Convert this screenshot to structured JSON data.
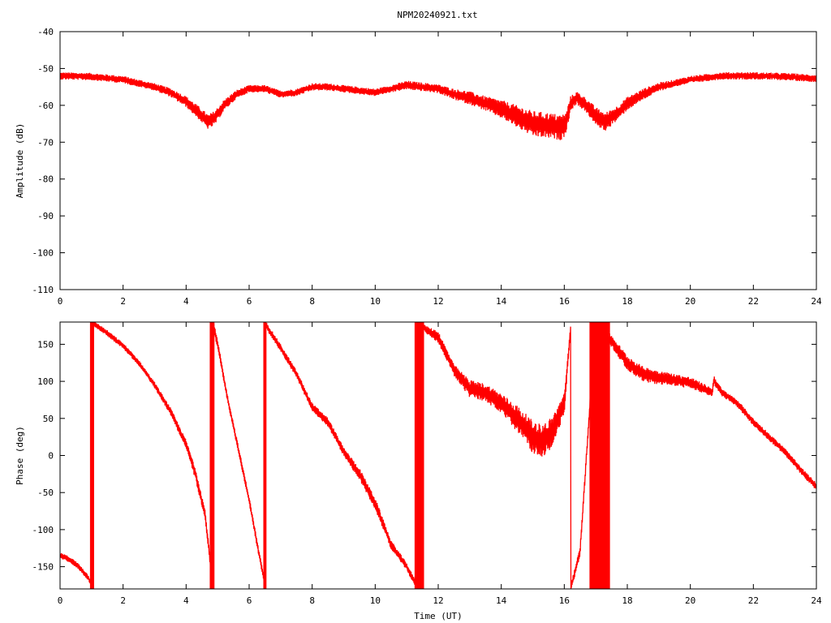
{
  "title": "NPM20240921.txt",
  "chart_data": [
    {
      "type": "line",
      "ylabel": "Amplitude (dB)",
      "xlabel": "",
      "xlim": [
        0,
        24
      ],
      "ylim": [
        -110,
        -40
      ],
      "xticks": [
        0,
        2,
        4,
        6,
        8,
        10,
        12,
        14,
        16,
        18,
        20,
        22,
        24
      ],
      "yticks": [
        -110,
        -100,
        -90,
        -80,
        -70,
        -60,
        -50,
        -40
      ],
      "grid": false,
      "series": [
        {
          "color": "#ff0000",
          "x": [
            0,
            1,
            2,
            3,
            3.5,
            4,
            4.4,
            4.7,
            4.9,
            5.2,
            5.6,
            6,
            6.5,
            7,
            7.5,
            8,
            8.5,
            9,
            9.5,
            10,
            10.5,
            11,
            11.5,
            12,
            12.5,
            13,
            13.5,
            14,
            14.5,
            15,
            15.5,
            15.9,
            16.05,
            16.2,
            16.4,
            16.7,
            17,
            17.3,
            17.7,
            18,
            18.5,
            19,
            19.5,
            20,
            21,
            22,
            23,
            24
          ],
          "y": [
            -52,
            -52.2,
            -53,
            -55,
            -56.5,
            -59,
            -62,
            -64.5,
            -63.5,
            -60,
            -57,
            -55.5,
            -55.5,
            -57,
            -56.5,
            -55,
            -55,
            -55.5,
            -56,
            -56.5,
            -55.5,
            -54.5,
            -55,
            -55.5,
            -57,
            -58,
            -59.5,
            -61,
            -63,
            -65,
            -65.5,
            -66,
            -65,
            -59.5,
            -58,
            -60,
            -63,
            -64.5,
            -62,
            -59.5,
            -57,
            -55,
            -54,
            -53,
            -52,
            -52,
            -52.2,
            -52.7
          ],
          "noise": [
            1,
            1,
            1,
            1,
            1.2,
            1.5,
            1.8,
            2,
            2,
            1.5,
            1.2,
            1,
            1,
            1,
            1,
            1,
            1,
            1,
            1,
            1,
            1,
            1.2,
            1.2,
            1.2,
            1.5,
            1.8,
            2,
            2.5,
            3,
            3.5,
            3.5,
            3.5,
            3,
            2,
            1.8,
            2,
            2.5,
            2.5,
            2,
            1.8,
            1.5,
            1.2,
            1,
            1,
            1,
            1,
            1,
            1
          ]
        }
      ]
    },
    {
      "type": "line",
      "ylabel": "Phase (deg)",
      "xlabel": "Time (UT)",
      "xlim": [
        0,
        24
      ],
      "ylim": [
        -180,
        180
      ],
      "xticks": [
        0,
        2,
        4,
        6,
        8,
        10,
        12,
        14,
        16,
        18,
        20,
        22,
        24
      ],
      "yticks": [
        -150,
        -100,
        -50,
        0,
        50,
        100,
        150
      ],
      "grid": false,
      "series": [
        {
          "color": "#ff0000",
          "x": [
            0,
            0.3,
            0.6,
            0.9,
            1.0,
            1.0,
            1.5,
            2,
            2.5,
            3,
            3.5,
            4,
            4.3,
            4.6,
            4.85,
            4.85,
            5,
            5.3,
            5.6,
            6,
            6.3,
            6.5,
            6.5,
            7,
            7.5,
            8,
            8.5,
            9,
            9.5,
            10,
            10.5,
            11,
            11.3,
            11.35,
            11.6,
            12,
            12.5,
            13,
            13.5,
            14,
            14.5,
            15,
            15.3,
            15.6,
            16,
            16.2,
            16.2,
            16.5,
            16.8,
            16.95,
            17.4,
            18,
            18.5,
            19,
            19.5,
            20,
            20.7,
            20.75,
            20.8,
            21,
            21.5,
            22,
            22.5,
            23,
            23.5,
            24
          ],
          "y": [
            -135,
            -140,
            -150,
            -165,
            -175,
            180,
            165,
            148,
            125,
            95,
            60,
            15,
            -25,
            -80,
            -175,
            178,
            150,
            80,
            20,
            -60,
            -130,
            -175,
            178,
            145,
            110,
            65,
            45,
            5,
            -25,
            -65,
            -120,
            -150,
            -175,
            180,
            170,
            160,
            115,
            90,
            85,
            70,
            50,
            25,
            20,
            30,
            70,
            170,
            -180,
            -130,
            60,
            180,
            160,
            125,
            110,
            105,
            102,
            98,
            85,
            103,
            98,
            85,
            70,
            45,
            25,
            5,
            -20,
            -42
          ],
          "noise": [
            4,
            4,
            4,
            4,
            4,
            4,
            4,
            4,
            4,
            4,
            5,
            6,
            8,
            8,
            6,
            6,
            6,
            5,
            5,
            5,
            5,
            5,
            5,
            5,
            5,
            6,
            6,
            6,
            8,
            8,
            6,
            5,
            5,
            5,
            5,
            8,
            8,
            12,
            12,
            14,
            18,
            22,
            22,
            22,
            14,
            6,
            6,
            6,
            6,
            6,
            8,
            10,
            10,
            10,
            8,
            8,
            6,
            6,
            6,
            5,
            5,
            5,
            5,
            5,
            5,
            5
          ]
        }
      ],
      "bands": [
        {
          "x": [
            0.95,
            1.08
          ],
          "y": [
            -180,
            180
          ]
        },
        {
          "x": [
            4.75,
            4.9
          ],
          "y": [
            -180,
            180
          ]
        },
        {
          "x": [
            6.45,
            6.55
          ],
          "y": [
            -180,
            180
          ]
        },
        {
          "x": [
            11.25,
            11.55
          ],
          "y": [
            -180,
            180
          ]
        },
        {
          "x": [
            16.8,
            17.45
          ],
          "y": [
            -180,
            180
          ]
        }
      ]
    }
  ]
}
